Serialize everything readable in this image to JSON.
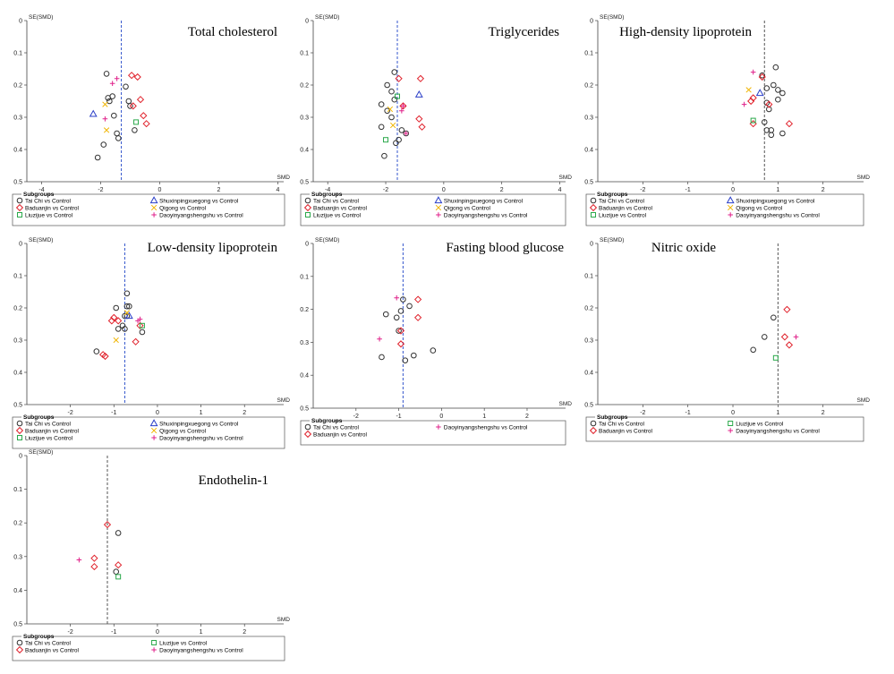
{
  "common": {
    "y_axis_label": "SE(SMD)",
    "x_axis_label": "SMD",
    "legend_title": "Subgroups"
  },
  "styles": {
    "Tai Chi vs Control": {
      "marker": "circle",
      "color": "#333333"
    },
    "Baduanjin vs Control": {
      "marker": "diamond",
      "color": "#e0202a"
    },
    "Liuzijue vs Control": {
      "marker": "square",
      "color": "#2aa84a"
    },
    "Shuxinpingxuegong vs Control": {
      "marker": "triangle",
      "color": "#2b3fc8"
    },
    "Qigong vs Control": {
      "marker": "x",
      "color": "#f0b400"
    },
    "Daoyinyangshengshu vs Control": {
      "marker": "plus",
      "color": "#e0208a"
    }
  },
  "chart_data": [
    {
      "type": "scatter",
      "title": "Total cholesterol",
      "xlim": [
        -4.5,
        4.2
      ],
      "ylim": [
        0,
        0.5
      ],
      "xticks": [
        "-4",
        "-2",
        "0",
        "2",
        "4"
      ],
      "xtick_values": [
        -4,
        -2,
        0,
        2,
        4
      ],
      "yticks": [
        "0",
        "0.1",
        "0.2",
        "0.3",
        "0.4",
        "0.5"
      ],
      "ytick_values": [
        0,
        0.1,
        0.2,
        0.3,
        0.4,
        0.5
      ],
      "reference_line": -1.3,
      "reference_color": "#3355cc",
      "legend": [
        "Tai Chi vs Control",
        "Shuxinpingxuegong vs Control",
        "Baduanjin vs Control",
        "Qigong vs Control",
        "Liuzijue vs Control",
        "Daoyinyangshengshu vs Control"
      ],
      "series": [
        {
          "name": "Tai Chi vs Control",
          "points": [
            [
              -1.8,
              0.165
            ],
            [
              -1.75,
              0.24
            ],
            [
              -1.6,
              0.235
            ],
            [
              -1.15,
              0.205
            ],
            [
              -1.05,
              0.25
            ],
            [
              -1.0,
              0.265
            ],
            [
              -1.55,
              0.295
            ],
            [
              -1.45,
              0.35
            ],
            [
              -1.4,
              0.365
            ],
            [
              -1.9,
              0.385
            ],
            [
              -2.1,
              0.425
            ],
            [
              -0.85,
              0.34
            ],
            [
              -1.7,
              0.25
            ]
          ]
        },
        {
          "name": "Baduanjin vs Control",
          "points": [
            [
              -0.95,
              0.17
            ],
            [
              -0.75,
              0.175
            ],
            [
              -0.65,
              0.245
            ],
            [
              -0.9,
              0.265
            ],
            [
              -0.55,
              0.295
            ],
            [
              -0.45,
              0.32
            ]
          ]
        },
        {
          "name": "Liuzijue vs Control",
          "points": [
            [
              -0.8,
              0.315
            ]
          ]
        },
        {
          "name": "Shuxinpingxuegong vs Control",
          "points": [
            [
              -2.25,
              0.29
            ]
          ]
        },
        {
          "name": "Qigong vs Control",
          "points": [
            [
              -1.85,
              0.26
            ],
            [
              -1.8,
              0.34
            ]
          ]
        },
        {
          "name": "Daoyinyangshengshu vs Control",
          "points": [
            [
              -1.45,
              0.18
            ],
            [
              -1.85,
              0.305
            ],
            [
              -1.6,
              0.195
            ]
          ]
        }
      ]
    },
    {
      "type": "scatter",
      "title": "Triglycerides",
      "xlim": [
        -4.5,
        4.2
      ],
      "ylim": [
        0,
        0.5
      ],
      "xticks": [
        "-4",
        "-2",
        "0",
        "2",
        "4"
      ],
      "xtick_values": [
        -4,
        -2,
        0,
        2,
        4
      ],
      "yticks": [
        "0",
        "0.1",
        "0.2",
        "0.3",
        "0.4",
        "0.5"
      ],
      "ytick_values": [
        0,
        0.1,
        0.2,
        0.3,
        0.4,
        0.5
      ],
      "reference_line": -1.6,
      "reference_color": "#3355cc",
      "legend": [
        "Tai Chi vs Control",
        "Shuxinpingxuegong vs Control",
        "Baduanjin vs Control",
        "Qigong vs Control",
        "Liuzijue vs Control",
        "Daoyinyangshengshu vs Control"
      ],
      "series": [
        {
          "name": "Tai Chi vs Control",
          "points": [
            [
              -1.7,
              0.16
            ],
            [
              -1.95,
              0.2
            ],
            [
              -1.8,
              0.22
            ],
            [
              -1.7,
              0.245
            ],
            [
              -2.15,
              0.26
            ],
            [
              -1.95,
              0.28
            ],
            [
              -1.8,
              0.3
            ],
            [
              -2.15,
              0.33
            ],
            [
              -1.45,
              0.34
            ],
            [
              -1.3,
              0.35
            ],
            [
              -1.55,
              0.37
            ],
            [
              -1.65,
              0.38
            ],
            [
              -2.05,
              0.42
            ]
          ]
        },
        {
          "name": "Baduanjin vs Control",
          "points": [
            [
              -1.55,
              0.18
            ],
            [
              -0.8,
              0.18
            ],
            [
              -1.4,
              0.265
            ],
            [
              -0.85,
              0.305
            ],
            [
              -0.75,
              0.33
            ]
          ]
        },
        {
          "name": "Liuzijue vs Control",
          "points": [
            [
              -1.6,
              0.235
            ],
            [
              -2.0,
              0.37
            ]
          ]
        },
        {
          "name": "Shuxinpingxuegong vs Control",
          "points": [
            [
              -0.85,
              0.23
            ]
          ]
        },
        {
          "name": "Qigong vs Control",
          "points": [
            [
              -1.85,
              0.275
            ],
            [
              -1.75,
              0.325
            ]
          ]
        },
        {
          "name": "Daoyinyangshengshu vs Control",
          "points": [
            [
              -1.45,
              0.28
            ],
            [
              -1.4,
              0.265
            ],
            [
              -1.3,
              0.35
            ]
          ]
        }
      ]
    },
    {
      "type": "scatter",
      "title": "High-density lipoprotein",
      "xlim": [
        -3.0,
        2.9
      ],
      "ylim": [
        0,
        0.5
      ],
      "xticks": [
        "-2",
        "-1",
        "0",
        "1",
        "2"
      ],
      "xtick_values": [
        -2,
        -1,
        0,
        1,
        2
      ],
      "yticks": [
        "0",
        "0.1",
        "0.2",
        "0.3",
        "0.4",
        "0.5"
      ],
      "ytick_values": [
        0,
        0.1,
        0.2,
        0.3,
        0.4,
        0.5
      ],
      "reference_line": 0.7,
      "reference_color": "#555555",
      "legend": [
        "Tai Chi vs Control",
        "Shuxinpingxuegong vs Control",
        "Baduanjin vs Control",
        "Qigong vs Control",
        "Liuzijue vs Control",
        "Daoyinyangshengshu vs Control"
      ],
      "series": [
        {
          "name": "Tai Chi vs Control",
          "points": [
            [
              0.95,
              0.145
            ],
            [
              0.65,
              0.17
            ],
            [
              0.9,
              0.2
            ],
            [
              0.75,
              0.21
            ],
            [
              1.0,
              0.215
            ],
            [
              1.1,
              0.225
            ],
            [
              1.0,
              0.245
            ],
            [
              0.75,
              0.255
            ],
            [
              0.8,
              0.275
            ],
            [
              0.7,
              0.315
            ],
            [
              0.75,
              0.34
            ],
            [
              0.85,
              0.34
            ],
            [
              0.85,
              0.355
            ],
            [
              1.1,
              0.35
            ]
          ]
        },
        {
          "name": "Baduanjin vs Control",
          "points": [
            [
              0.65,
              0.175
            ],
            [
              0.4,
              0.25
            ],
            [
              0.8,
              0.26
            ],
            [
              0.45,
              0.32
            ],
            [
              1.25,
              0.32
            ],
            [
              0.45,
              0.24
            ]
          ]
        },
        {
          "name": "Liuzijue vs Control",
          "points": [
            [
              0.45,
              0.31
            ]
          ]
        },
        {
          "name": "Shuxinpingxuegong vs Control",
          "points": [
            [
              0.6,
              0.225
            ]
          ]
        },
        {
          "name": "Qigong vs Control",
          "points": [
            [
              0.35,
              0.215
            ]
          ]
        },
        {
          "name": "Daoyinyangshengshu vs Control",
          "points": [
            [
              0.45,
              0.16
            ],
            [
              0.25,
              0.26
            ]
          ]
        }
      ]
    },
    {
      "type": "scatter",
      "title": "Low-density lipoprotein",
      "xlim": [
        -3.0,
        2.9
      ],
      "ylim": [
        0,
        0.5
      ],
      "xticks": [
        "-2",
        "-1",
        "0",
        "1",
        "2"
      ],
      "xtick_values": [
        -2,
        -1,
        0,
        1,
        2
      ],
      "yticks": [
        "0",
        "0.1",
        "0.2",
        "0.3",
        "0.4",
        "0.5"
      ],
      "ytick_values": [
        0,
        0.1,
        0.2,
        0.3,
        0.4,
        0.5
      ],
      "reference_line": -0.75,
      "reference_color": "#3355cc",
      "legend": [
        "Tai Chi vs Control",
        "Shuxinpingxuegong vs Control",
        "Baduanjin vs Control",
        "Qigong vs Control",
        "Liuzijue vs Control",
        "Daoyinyangshengshu vs Control"
      ],
      "series": [
        {
          "name": "Tai Chi vs Control",
          "points": [
            [
              -0.7,
              0.155
            ],
            [
              -0.65,
              0.195
            ],
            [
              -0.7,
              0.195
            ],
            [
              -0.95,
              0.2
            ],
            [
              -0.8,
              0.255
            ],
            [
              -0.7,
              0.225
            ],
            [
              -0.75,
              0.265
            ],
            [
              -0.9,
              0.265
            ],
            [
              -0.35,
              0.275
            ],
            [
              -1.4,
              0.335
            ],
            [
              -0.75,
              0.225
            ]
          ]
        },
        {
          "name": "Baduanjin vs Control",
          "points": [
            [
              -1.0,
              0.23
            ],
            [
              -1.05,
              0.24
            ],
            [
              -0.9,
              0.24
            ],
            [
              -0.5,
              0.305
            ],
            [
              -1.25,
              0.345
            ],
            [
              -1.2,
              0.35
            ],
            [
              -0.4,
              0.255
            ]
          ]
        },
        {
          "name": "Liuzijue vs Control",
          "points": [
            [
              -0.35,
              0.255
            ]
          ]
        },
        {
          "name": "Shuxinpingxuegong vs Control",
          "points": [
            [
              -0.65,
              0.225
            ]
          ]
        },
        {
          "name": "Qigong vs Control",
          "points": [
            [
              -0.95,
              0.3
            ],
            [
              -0.7,
              0.215
            ]
          ]
        },
        {
          "name": "Daoyinyangshengshu vs Control",
          "points": [
            [
              -0.4,
              0.235
            ],
            [
              -0.45,
              0.24
            ]
          ]
        }
      ]
    },
    {
      "type": "scatter",
      "title": "Fasting blood glucose",
      "xlim": [
        -3.0,
        2.9
      ],
      "ylim": [
        0,
        0.5
      ],
      "xticks": [
        "-2",
        "-1",
        "0",
        "1",
        "2"
      ],
      "xtick_values": [
        -2,
        -1,
        0,
        1,
        2
      ],
      "yticks": [
        "0",
        "0.1",
        "0.2",
        "0.3",
        "0.4",
        "0.5"
      ],
      "ytick_values": [
        0,
        0.1,
        0.2,
        0.3,
        0.4,
        0.5
      ],
      "reference_line": -0.9,
      "reference_color": "#3355cc",
      "legend": [
        "Tai Chi vs Control",
        "Daoyinyangshengshu vs Control",
        "Baduanjin vs Control"
      ],
      "series": [
        {
          "name": "Tai Chi vs Control",
          "points": [
            [
              -0.9,
              0.17
            ],
            [
              -1.3,
              0.215
            ],
            [
              -1.05,
              0.225
            ],
            [
              -0.95,
              0.205
            ],
            [
              -0.75,
              0.19
            ],
            [
              -1.4,
              0.345
            ],
            [
              -0.65,
              0.34
            ],
            [
              -0.2,
              0.325
            ],
            [
              -0.85,
              0.355
            ],
            [
              -1.0,
              0.265
            ]
          ]
        },
        {
          "name": "Daoyinyangshengshu vs Control",
          "points": [
            [
              -1.05,
              0.165
            ],
            [
              -1.45,
              0.29
            ]
          ]
        },
        {
          "name": "Baduanjin vs Control",
          "points": [
            [
              -0.55,
              0.17
            ],
            [
              -0.55,
              0.225
            ],
            [
              -0.95,
              0.265
            ],
            [
              -0.95,
              0.305
            ]
          ]
        }
      ]
    },
    {
      "type": "scatter",
      "title": "Nitric oxide",
      "xlim": [
        -3.0,
        2.9
      ],
      "ylim": [
        0,
        0.5
      ],
      "xticks": [
        "-2",
        "-1",
        "0",
        "1",
        "2"
      ],
      "xtick_values": [
        -2,
        -1,
        0,
        1,
        2
      ],
      "yticks": [
        "0",
        "0.1",
        "0.2",
        "0.3",
        "0.4",
        "0.5"
      ],
      "ytick_values": [
        0,
        0.1,
        0.2,
        0.3,
        0.4,
        0.5
      ],
      "reference_line": 1.0,
      "reference_color": "#555555",
      "legend": [
        "Tai Chi vs Control",
        "Liuzijue vs Control",
        "Baduanjin vs Control",
        "Daoyinyangshengshu vs Control"
      ],
      "series": [
        {
          "name": "Tai Chi vs Control",
          "points": [
            [
              0.9,
              0.23
            ],
            [
              0.7,
              0.29
            ],
            [
              0.45,
              0.33
            ]
          ]
        },
        {
          "name": "Liuzijue vs Control",
          "points": [
            [
              0.95,
              0.355
            ]
          ]
        },
        {
          "name": "Baduanjin vs Control",
          "points": [
            [
              1.2,
              0.205
            ],
            [
              1.15,
              0.29
            ],
            [
              1.25,
              0.315
            ]
          ]
        },
        {
          "name": "Daoyinyangshengshu vs Control",
          "points": [
            [
              1.4,
              0.29
            ]
          ]
        }
      ]
    },
    {
      "type": "scatter",
      "title": "Endothelin-1",
      "xlim": [
        -3.0,
        2.9
      ],
      "ylim": [
        0,
        0.5
      ],
      "xticks": [
        "-2",
        "-1",
        "0",
        "1",
        "2"
      ],
      "xtick_values": [
        -2,
        -1,
        0,
        1,
        2
      ],
      "yticks": [
        "0",
        "0.1",
        "0.2",
        "0.3",
        "0.4",
        "0.5"
      ],
      "ytick_values": [
        0,
        0.1,
        0.2,
        0.3,
        0.4,
        0.5
      ],
      "reference_line": -1.15,
      "reference_color": "#555555",
      "legend": [
        "Tai Chi vs Control",
        "Liuzijue vs Control",
        "Baduanjin vs Control",
        "Daoyinyangshengshu vs Control"
      ],
      "series": [
        {
          "name": "Tai Chi vs Control",
          "points": [
            [
              -0.9,
              0.23
            ],
            [
              -0.95,
              0.345
            ]
          ]
        },
        {
          "name": "Liuzijue vs Control",
          "points": [
            [
              -0.9,
              0.36
            ]
          ]
        },
        {
          "name": "Baduanjin vs Control",
          "points": [
            [
              -1.15,
              0.205
            ],
            [
              -1.45,
              0.305
            ],
            [
              -1.45,
              0.33
            ],
            [
              -0.9,
              0.325
            ]
          ]
        },
        {
          "name": "Daoyinyangshengshu vs Control",
          "points": [
            [
              -1.8,
              0.31
            ]
          ]
        }
      ]
    }
  ]
}
